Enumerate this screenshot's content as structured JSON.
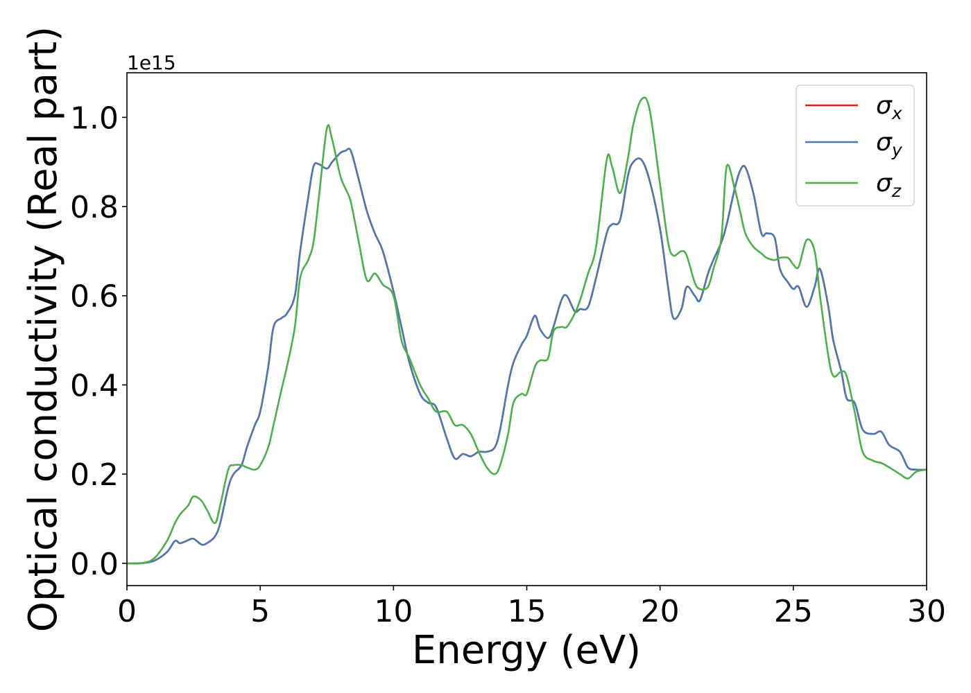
{
  "chart_data": {
    "type": "line",
    "xlabel": "Energy (eV)",
    "ylabel": "Optical conductivity (Real part)",
    "y_offset_text": "1e15",
    "xlim": [
      0,
      30
    ],
    "ylim": [
      -0.05,
      1.1
    ],
    "x_ticks": [
      0,
      5,
      10,
      15,
      20,
      25,
      30
    ],
    "y_ticks": [
      0.0,
      0.2,
      0.4,
      0.6,
      0.8,
      1.0
    ],
    "x_tick_labels": [
      "0",
      "5",
      "10",
      "15",
      "20",
      "25",
      "30"
    ],
    "y_tick_labels": [
      "0.0",
      "0.2",
      "0.4",
      "0.6",
      "0.8",
      "1.0"
    ],
    "grid": false,
    "legend_position": "top-right",
    "x": [
      0,
      0.5,
      1.0,
      1.5,
      1.8,
      2.0,
      2.3,
      2.5,
      2.8,
      3.0,
      3.3,
      3.5,
      3.8,
      4.0,
      4.3,
      4.5,
      4.8,
      5.0,
      5.3,
      5.5,
      5.8,
      6.0,
      6.3,
      6.5,
      6.8,
      7.0,
      7.2,
      7.5,
      7.7,
      8.0,
      8.2,
      8.4,
      8.7,
      9.0,
      9.3,
      9.6,
      10.0,
      10.3,
      10.6,
      11.0,
      11.3,
      11.6,
      12.0,
      12.3,
      12.6,
      12.9,
      13.2,
      13.5,
      13.8,
      14.0,
      14.3,
      14.5,
      14.8,
      15.0,
      15.3,
      15.5,
      15.8,
      16.0,
      16.3,
      16.5,
      16.8,
      17.0,
      17.3,
      17.6,
      18.0,
      18.2,
      18.5,
      18.8,
      19.0,
      19.3,
      19.6,
      20.0,
      20.3,
      20.5,
      20.8,
      21.0,
      21.3,
      21.5,
      21.8,
      22.0,
      22.3,
      22.5,
      22.8,
      23.0,
      23.2,
      23.5,
      23.8,
      24.0,
      24.3,
      24.5,
      24.8,
      25.0,
      25.2,
      25.5,
      25.8,
      26.0,
      26.3,
      26.5,
      26.8,
      27.0,
      27.3,
      27.6,
      28.0,
      28.3,
      28.6,
      29.0,
      29.3,
      29.6,
      30.0
    ],
    "series": [
      {
        "name": "σx",
        "symbol": "σ",
        "subscript": "x",
        "color": "#e41a1c",
        "values": [
          0.0,
          0.0,
          0.005,
          0.025,
          0.05,
          0.045,
          0.052,
          0.055,
          0.042,
          0.045,
          0.06,
          0.09,
          0.17,
          0.2,
          0.22,
          0.26,
          0.31,
          0.34,
          0.44,
          0.53,
          0.55,
          0.56,
          0.6,
          0.7,
          0.82,
          0.89,
          0.895,
          0.885,
          0.9,
          0.92,
          0.925,
          0.925,
          0.86,
          0.79,
          0.74,
          0.7,
          0.61,
          0.53,
          0.45,
          0.38,
          0.36,
          0.35,
          0.28,
          0.235,
          0.245,
          0.24,
          0.25,
          0.25,
          0.26,
          0.3,
          0.4,
          0.45,
          0.49,
          0.51,
          0.555,
          0.525,
          0.505,
          0.53,
          0.59,
          0.6,
          0.565,
          0.57,
          0.575,
          0.64,
          0.74,
          0.76,
          0.77,
          0.87,
          0.9,
          0.905,
          0.86,
          0.75,
          0.62,
          0.55,
          0.57,
          0.62,
          0.6,
          0.59,
          0.65,
          0.68,
          0.72,
          0.76,
          0.84,
          0.88,
          0.888,
          0.83,
          0.74,
          0.74,
          0.73,
          0.66,
          0.63,
          0.615,
          0.62,
          0.575,
          0.62,
          0.66,
          0.58,
          0.5,
          0.43,
          0.37,
          0.36,
          0.3,
          0.29,
          0.295,
          0.265,
          0.25,
          0.215,
          0.21,
          0.21
        ]
      },
      {
        "name": "σy",
        "symbol": "σ",
        "subscript": "y",
        "color": "#4a7ab0",
        "values": [
          0.0,
          0.0,
          0.005,
          0.025,
          0.05,
          0.045,
          0.052,
          0.055,
          0.042,
          0.045,
          0.06,
          0.09,
          0.17,
          0.2,
          0.22,
          0.26,
          0.31,
          0.34,
          0.44,
          0.53,
          0.55,
          0.56,
          0.6,
          0.7,
          0.82,
          0.89,
          0.895,
          0.885,
          0.9,
          0.92,
          0.925,
          0.925,
          0.86,
          0.79,
          0.74,
          0.7,
          0.61,
          0.53,
          0.45,
          0.38,
          0.36,
          0.35,
          0.28,
          0.235,
          0.245,
          0.24,
          0.25,
          0.25,
          0.26,
          0.3,
          0.4,
          0.45,
          0.49,
          0.51,
          0.555,
          0.525,
          0.505,
          0.53,
          0.59,
          0.6,
          0.565,
          0.57,
          0.575,
          0.64,
          0.74,
          0.76,
          0.77,
          0.87,
          0.9,
          0.905,
          0.86,
          0.75,
          0.62,
          0.55,
          0.57,
          0.62,
          0.6,
          0.59,
          0.65,
          0.68,
          0.72,
          0.76,
          0.84,
          0.88,
          0.888,
          0.83,
          0.74,
          0.74,
          0.73,
          0.66,
          0.63,
          0.615,
          0.62,
          0.575,
          0.62,
          0.66,
          0.58,
          0.5,
          0.43,
          0.37,
          0.36,
          0.3,
          0.29,
          0.295,
          0.265,
          0.25,
          0.215,
          0.21,
          0.21
        ]
      },
      {
        "name": "σz",
        "symbol": "σ",
        "subscript": "z",
        "color": "#4daf4a",
        "values": [
          0.0,
          0.0,
          0.01,
          0.05,
          0.09,
          0.11,
          0.13,
          0.15,
          0.14,
          0.12,
          0.09,
          0.13,
          0.21,
          0.22,
          0.22,
          0.215,
          0.21,
          0.22,
          0.26,
          0.31,
          0.39,
          0.44,
          0.53,
          0.64,
          0.68,
          0.72,
          0.82,
          0.975,
          0.95,
          0.87,
          0.84,
          0.81,
          0.72,
          0.635,
          0.65,
          0.625,
          0.6,
          0.5,
          0.46,
          0.4,
          0.37,
          0.34,
          0.34,
          0.31,
          0.31,
          0.29,
          0.25,
          0.215,
          0.2,
          0.22,
          0.29,
          0.36,
          0.38,
          0.38,
          0.44,
          0.455,
          0.46,
          0.52,
          0.53,
          0.53,
          0.56,
          0.59,
          0.65,
          0.71,
          0.905,
          0.89,
          0.83,
          0.91,
          0.985,
          1.04,
          1.02,
          0.85,
          0.72,
          0.69,
          0.7,
          0.69,
          0.63,
          0.615,
          0.62,
          0.66,
          0.73,
          0.89,
          0.84,
          0.79,
          0.74,
          0.71,
          0.695,
          0.685,
          0.68,
          0.685,
          0.685,
          0.67,
          0.665,
          0.725,
          0.7,
          0.6,
          0.47,
          0.42,
          0.43,
          0.42,
          0.34,
          0.25,
          0.23,
          0.225,
          0.215,
          0.2,
          0.19,
          0.205,
          0.21
        ]
      }
    ]
  }
}
